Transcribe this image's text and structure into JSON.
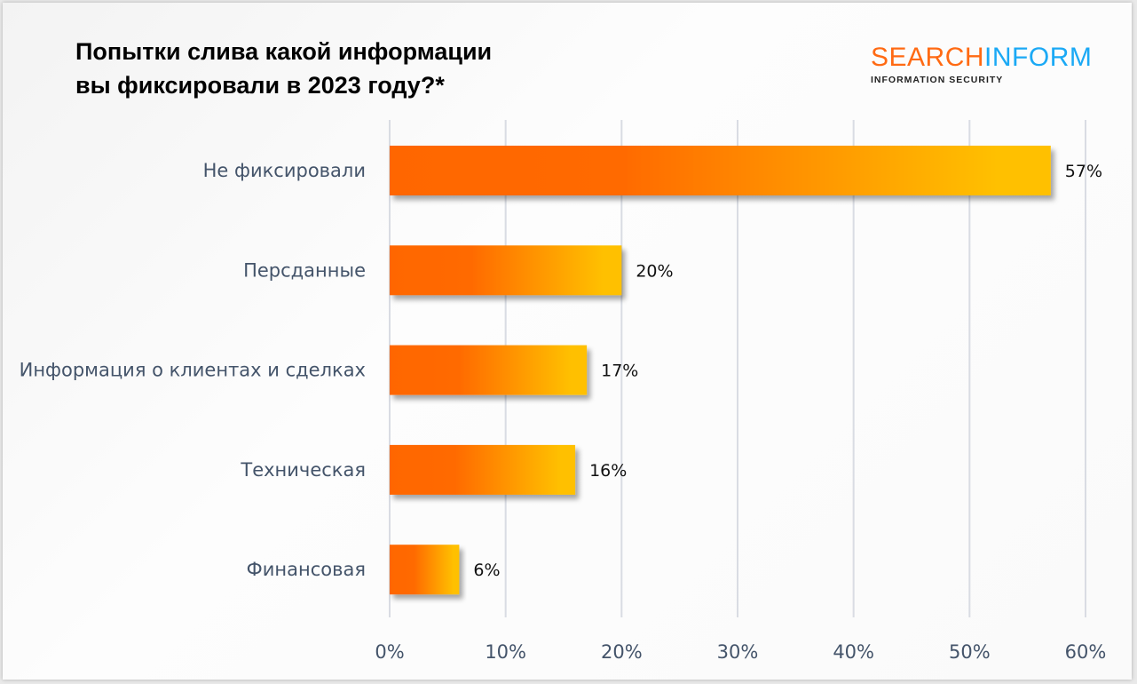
{
  "header": {
    "title_line1": "Попытки слива какой информации",
    "title_line2": "вы фиксировали в 2023 году?*"
  },
  "logo": {
    "part1": "SEARCH",
    "part2": "INFORM",
    "tagline": "INFORMATION SECURITY",
    "colors": {
      "part1": "#ff6a13",
      "part2": "#1ba9f5"
    }
  },
  "chart_data": {
    "type": "bar",
    "orientation": "horizontal",
    "title": "Попытки слива какой информации вы фиксировали в 2023 году?*",
    "categories": [
      "Не фиксировали",
      "Персданные",
      "Информация о клиентах и сделках",
      "Техническая",
      "Финансовая"
    ],
    "values": [
      57,
      20,
      17,
      16,
      6
    ],
    "data_labels": [
      "57%",
      "20%",
      "17%",
      "16%",
      "6%"
    ],
    "xlim": [
      0,
      60
    ],
    "x_ticks": [
      "0%",
      "10%",
      "20%",
      "30%",
      "40%",
      "50%",
      "60%"
    ],
    "grid": "vertical",
    "bar_gradient": [
      "#ff6600",
      "#ffc000"
    ]
  }
}
